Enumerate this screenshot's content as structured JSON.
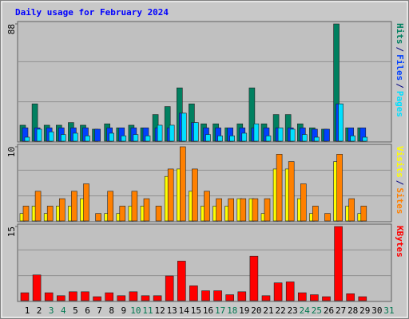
{
  "title": "Daily usage for February 2024",
  "legend_separator": "/",
  "categories": [
    "1",
    "2",
    "3",
    "4",
    "5",
    "6",
    "7",
    "8",
    "9",
    "10",
    "11",
    "12",
    "13",
    "14",
    "15",
    "16",
    "17",
    "18",
    "19",
    "20",
    "21",
    "22",
    "23",
    "24",
    "25",
    "26",
    "27",
    "28",
    "29",
    "30",
    "31"
  ],
  "category_colors": [
    "#000000",
    "#000000",
    "#007850",
    "#007850",
    "#000000",
    "#000000",
    "#000000",
    "#000000",
    "#000000",
    "#007850",
    "#007850",
    "#000000",
    "#000000",
    "#000000",
    "#000000",
    "#000000",
    "#007850",
    "#007850",
    "#000000",
    "#000000",
    "#000000",
    "#000000",
    "#000000",
    "#007850",
    "#007850",
    "#000000",
    "#000000",
    "#000000",
    "#000000",
    "#000000",
    "#007850"
  ],
  "chart_data": [
    {
      "type": "bar",
      "ylim": [
        0,
        88
      ],
      "yticks": [
        88
      ],
      "series": [
        {
          "name": "Hits",
          "color": "#008060",
          "values": [
            12,
            28,
            12,
            12,
            14,
            12,
            9,
            13,
            10,
            12,
            10,
            20,
            26,
            40,
            28,
            13,
            13,
            10,
            13,
            40,
            13,
            20,
            20,
            13,
            10,
            9,
            88,
            10,
            10,
            null,
            null
          ]
        },
        {
          "name": "Files",
          "color": "#0040ff",
          "values": [
            10,
            10,
            10,
            10,
            10,
            10,
            9,
            10,
            10,
            10,
            10,
            10,
            10,
            21,
            14,
            10,
            10,
            10,
            10,
            10,
            10,
            10,
            10,
            10,
            9,
            9,
            28,
            10,
            10,
            null,
            null
          ]
        },
        {
          "name": "Pages",
          "color": "#00e0ff",
          "values": [
            3,
            9,
            7,
            5,
            6,
            4,
            0,
            6,
            4,
            5,
            4,
            12,
            12,
            21,
            14,
            5,
            4,
            4,
            6,
            13,
            4,
            10,
            9,
            5,
            3,
            0,
            28,
            4,
            3,
            null,
            null
          ]
        }
      ]
    },
    {
      "type": "bar",
      "ylim": [
        0,
        10
      ],
      "yticks": [
        10
      ],
      "series": [
        {
          "name": "Visits",
          "color": "#ffff00",
          "values": [
            1,
            2,
            1,
            2,
            2,
            3,
            0,
            1,
            1,
            2,
            2,
            0,
            6,
            7,
            4,
            2,
            2,
            2,
            3,
            3,
            1,
            7,
            7,
            3,
            1,
            0,
            8,
            2,
            1,
            null,
            null
          ]
        },
        {
          "name": "Sites",
          "color": "#ff8000",
          "values": [
            2,
            4,
            2,
            3,
            4,
            5,
            1,
            4,
            2,
            4,
            3,
            2,
            7,
            10,
            7,
            4,
            3,
            3,
            3,
            3,
            3,
            9,
            8,
            5,
            2,
            1,
            9,
            3,
            2,
            null,
            null
          ]
        }
      ]
    },
    {
      "type": "bar",
      "ylim": [
        0,
        15
      ],
      "yticks": [
        15
      ],
      "series": [
        {
          "name": "KBytes",
          "color": "#ff0000",
          "values": [
            1.6,
            5.2,
            1.6,
            1,
            1.8,
            1.8,
            0.8,
            1.6,
            1,
            1.8,
            1,
            1,
            5,
            8,
            3,
            2,
            2,
            1.2,
            1.8,
            9,
            1,
            3.6,
            3.8,
            1.6,
            1.2,
            0.8,
            15,
            1.4,
            0.8,
            null,
            null
          ]
        }
      ]
    }
  ]
}
